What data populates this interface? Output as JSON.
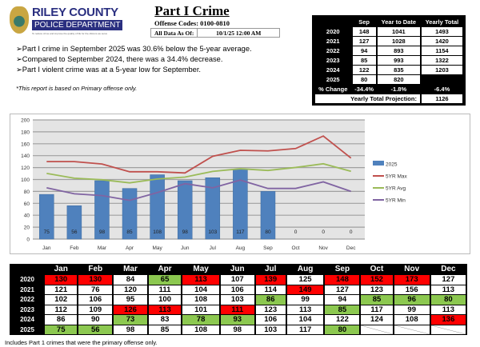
{
  "logo": {
    "line1": "RILEY COUNTY",
    "line2": "POLICE DEPARTMENT",
    "tagline": "To reduce crime and improve the quality of life for the citizens we serve"
  },
  "header": {
    "title": "Part I Crime",
    "codes": "Offense Codes: 0100-0810",
    "asof_label": "All Data As Of:",
    "asof_value": "10/1/25 12:00 AM"
  },
  "bullets": [
    "➢Part I crime in September 2025 was 30.6% below the 5-year average.",
    "➢Compared to September 2024, there was a 34.4% decrease.",
    "➢Part I violent crime was at a 5-year low for September."
  ],
  "note": "*This report is based on Primary offense only.",
  "summary": {
    "headers": [
      "",
      "Sep",
      "Year to Date",
      "Yearly Total"
    ],
    "rows": [
      [
        "2020",
        "148",
        "1041",
        "1493"
      ],
      [
        "2021",
        "127",
        "1028",
        "1420"
      ],
      [
        "2022",
        "94",
        "893",
        "1154"
      ],
      [
        "2023",
        "85",
        "993",
        "1322"
      ],
      [
        "2024",
        "122",
        "835",
        "1203"
      ],
      [
        "2025",
        "80",
        "820",
        ""
      ]
    ],
    "change": [
      "% Change",
      "-34.4%",
      "-1.8%",
      "-6.4%"
    ],
    "projection_label": "Yearly Total Projection:",
    "projection_value": "1126"
  },
  "chart_data": {
    "type": "bar+line",
    "categories": [
      "Jan",
      "Feb",
      "Mar",
      "Apr",
      "May",
      "Jun",
      "Jul",
      "Aug",
      "Sep",
      "Oct",
      "Nov",
      "Dec"
    ],
    "ylim": [
      0,
      200
    ],
    "yticks": [
      0,
      20,
      40,
      60,
      80,
      100,
      120,
      140,
      160,
      180,
      200
    ],
    "grid": true,
    "legend": "right",
    "series": [
      {
        "name": "2025",
        "type": "bar",
        "color": "#4f81bd",
        "values": [
          75,
          56,
          98,
          85,
          108,
          98,
          103,
          117,
          80,
          0,
          0,
          0
        ]
      },
      {
        "name": "5YR Max",
        "type": "line",
        "color": "#c0504d",
        "values": [
          130,
          130,
          126,
          113,
          113,
          111,
          139,
          149,
          148,
          152,
          173,
          136
        ]
      },
      {
        "name": "5YR Avg",
        "type": "line",
        "color": "#9bbb59",
        "values": [
          110.2,
          102.2,
          99.6,
          94.4,
          100.8,
          104,
          113.6,
          118,
          115.2,
          120.2,
          126.4,
          113.8
        ]
      },
      {
        "name": "5YR Min",
        "type": "line",
        "color": "#8064a2",
        "values": [
          86,
          76,
          73,
          65,
          78,
          93,
          86,
          99,
          85,
          85,
          96,
          80
        ]
      }
    ]
  },
  "monthly": {
    "months": [
      "Jan",
      "Feb",
      "Mar",
      "Apr",
      "May",
      "Jun",
      "Jul",
      "Aug",
      "Sep",
      "Oct",
      "Nov",
      "Dec"
    ],
    "rows": [
      {
        "year": "2020",
        "values": [
          "130",
          "130",
          "84",
          "65",
          "113",
          "107",
          "139",
          "125",
          "148",
          "152",
          "173",
          "127"
        ],
        "flags": [
          "hi",
          "hi",
          "",
          "lo",
          "hi",
          "",
          "hi",
          "",
          "hi",
          "hi",
          "hi",
          ""
        ]
      },
      {
        "year": "2021",
        "values": [
          "121",
          "76",
          "120",
          "111",
          "104",
          "106",
          "114",
          "149",
          "127",
          "123",
          "156",
          "113"
        ],
        "flags": [
          "",
          "",
          "",
          "",
          "",
          "",
          "",
          "hi",
          "",
          "",
          "",
          ""
        ]
      },
      {
        "year": "2022",
        "values": [
          "102",
          "106",
          "95",
          "100",
          "108",
          "103",
          "86",
          "99",
          "94",
          "85",
          "96",
          "80"
        ],
        "flags": [
          "",
          "",
          "",
          "",
          "",
          "",
          "lo",
          "",
          "",
          "lo",
          "lo",
          "lo"
        ]
      },
      {
        "year": "2023",
        "values": [
          "112",
          "109",
          "126",
          "113",
          "101",
          "111",
          "123",
          "113",
          "85",
          "117",
          "99",
          "113"
        ],
        "flags": [
          "",
          "",
          "hi",
          "hi",
          "",
          "hi",
          "",
          "",
          "lo",
          "",
          "",
          ""
        ]
      },
      {
        "year": "2024",
        "values": [
          "86",
          "90",
          "73",
          "83",
          "78",
          "93",
          "106",
          "104",
          "122",
          "124",
          "108",
          "136"
        ],
        "flags": [
          "",
          "",
          "lo",
          "",
          "lo",
          "lo",
          "",
          "",
          "",
          "",
          "",
          "hi"
        ]
      },
      {
        "year": "2025",
        "values": [
          "75",
          "56",
          "98",
          "85",
          "108",
          "98",
          "103",
          "117",
          "80",
          "",
          "",
          ""
        ],
        "flags": [
          "lo",
          "lo",
          "",
          "",
          "",
          "",
          "",
          "",
          "lo",
          "na",
          "na",
          "na"
        ]
      }
    ],
    "colors": {
      "high": "#ff0000",
      "low": "#8cc850"
    }
  },
  "footnote": "Includes Part 1 crimes that were the primary offense only."
}
